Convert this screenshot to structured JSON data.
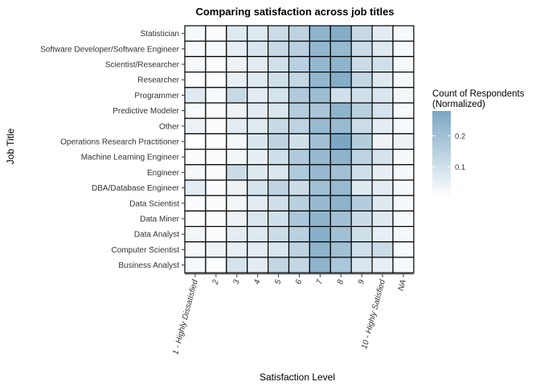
{
  "chart_data": {
    "type": "heatmap",
    "title": "Comparing satisfaction across job titles",
    "xlabel": "Satisfaction Level",
    "ylabel": "Job Title",
    "x_categories": [
      "1 - Highly Dissatisfied",
      "2",
      "3",
      "4",
      "5",
      "6",
      "7",
      "8",
      "9",
      "10 - Highly Satisfied",
      "NA"
    ],
    "y_categories": [
      "Statistician",
      "Software Developer/Software Engineer",
      "Scientist/Researcher",
      "Researcher",
      "Programmer",
      "Predictive Modeler",
      "Other",
      "Operations Research Practitioner",
      "Machine Learning Engineer",
      "Engineer",
      "DBA/Database Engineer",
      "Data Scientist",
      "Data Miner",
      "Data Analyst",
      "Computer Scientist",
      "Business Analyst"
    ],
    "values": [
      [
        0.02,
        0.01,
        0.07,
        0.07,
        0.11,
        0.14,
        0.24,
        0.26,
        0.12,
        0.06,
        0.02
      ],
      [
        0.02,
        0.02,
        0.05,
        0.08,
        0.12,
        0.15,
        0.23,
        0.22,
        0.11,
        0.07,
        0.02
      ],
      [
        0.02,
        0.01,
        0.04,
        0.06,
        0.1,
        0.15,
        0.23,
        0.24,
        0.11,
        0.1,
        0.02
      ],
      [
        0.01,
        0.01,
        0.05,
        0.07,
        0.1,
        0.13,
        0.23,
        0.26,
        0.13,
        0.07,
        0.02
      ],
      [
        0.07,
        0.02,
        0.12,
        0.06,
        0.09,
        0.17,
        0.21,
        0.1,
        0.1,
        0.08,
        0.03
      ],
      [
        0.02,
        0.01,
        0.04,
        0.06,
        0.08,
        0.16,
        0.18,
        0.24,
        0.15,
        0.09,
        0.02
      ],
      [
        0.04,
        0.01,
        0.06,
        0.07,
        0.12,
        0.14,
        0.22,
        0.22,
        0.11,
        0.06,
        0.02
      ],
      [
        0.0,
        0.0,
        0.02,
        0.08,
        0.14,
        0.1,
        0.2,
        0.28,
        0.16,
        0.04,
        0.04
      ],
      [
        0.01,
        0.01,
        0.03,
        0.05,
        0.1,
        0.17,
        0.22,
        0.24,
        0.14,
        0.09,
        0.02
      ],
      [
        0.02,
        0.01,
        0.11,
        0.07,
        0.08,
        0.17,
        0.22,
        0.2,
        0.1,
        0.05,
        0.02
      ],
      [
        0.06,
        0.01,
        0.04,
        0.09,
        0.14,
        0.11,
        0.2,
        0.22,
        0.07,
        0.06,
        0.02
      ],
      [
        0.01,
        0.01,
        0.03,
        0.06,
        0.1,
        0.15,
        0.22,
        0.24,
        0.16,
        0.07,
        0.02
      ],
      [
        0.01,
        0.01,
        0.04,
        0.08,
        0.1,
        0.18,
        0.24,
        0.2,
        0.11,
        0.07,
        0.02
      ],
      [
        0.03,
        0.01,
        0.06,
        0.07,
        0.11,
        0.15,
        0.25,
        0.2,
        0.1,
        0.05,
        0.02
      ],
      [
        0.02,
        0.04,
        0.05,
        0.06,
        0.08,
        0.14,
        0.24,
        0.2,
        0.1,
        0.11,
        0.02
      ],
      [
        0.02,
        0.01,
        0.09,
        0.06,
        0.13,
        0.13,
        0.24,
        0.18,
        0.08,
        0.05,
        0.02
      ]
    ],
    "legend": {
      "title_lines": [
        "Count of Respondents",
        "(Normalized)"
      ],
      "ticks": [
        0.1,
        0.2
      ],
      "tick_labels": [
        "0.1",
        "0.2"
      ],
      "range": [
        0,
        0.28
      ],
      "position": "right"
    },
    "color_low": "#ffffff",
    "color_high": "#7ba7c3",
    "grid": false
  }
}
